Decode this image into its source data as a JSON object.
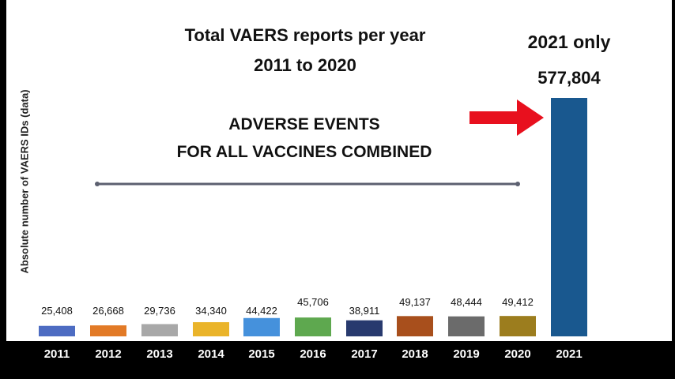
{
  "colors": {
    "background": "#ffffff",
    "arrow": "#e8101e",
    "divider": "#5c6070",
    "text": "#111111"
  },
  "title": {
    "line1": "Total VAERS reports per year",
    "line2": "2011 to 2020"
  },
  "subtitle": {
    "line1": "ADVERSE EVENTS",
    "line2": "FOR ALL VACCINES COMBINED"
  },
  "highlight": {
    "label": "2021 only",
    "value_label": "577,804",
    "arrow_icon": "right-arrow-icon"
  },
  "chart_data": {
    "type": "bar",
    "ylabel": "Absolute number of VAERS IDs (data)",
    "xlabel": "",
    "ylim": [
      0,
      600000
    ],
    "grid": false,
    "categories": [
      "2011",
      "2012",
      "2013",
      "2014",
      "2015",
      "2016",
      "2017",
      "2018",
      "2019",
      "2020",
      "2021"
    ],
    "values": [
      25408,
      26668,
      29736,
      34340,
      44422,
      45706,
      38911,
      49137,
      48444,
      49412,
      577804
    ],
    "value_labels": [
      "25,408",
      "26,668",
      "29,736",
      "34,340",
      "44,422",
      "45,706",
      "38,911",
      "49,137",
      "48,444",
      "49,412",
      "577,804"
    ],
    "colors": [
      "#4d6cc2",
      "#e27a26",
      "#a8a8a8",
      "#eab42a",
      "#4591dc",
      "#5ea84f",
      "#283a6e",
      "#a84f1c",
      "#6b6b6b",
      "#9c7d1e",
      "#19588f"
    ]
  }
}
